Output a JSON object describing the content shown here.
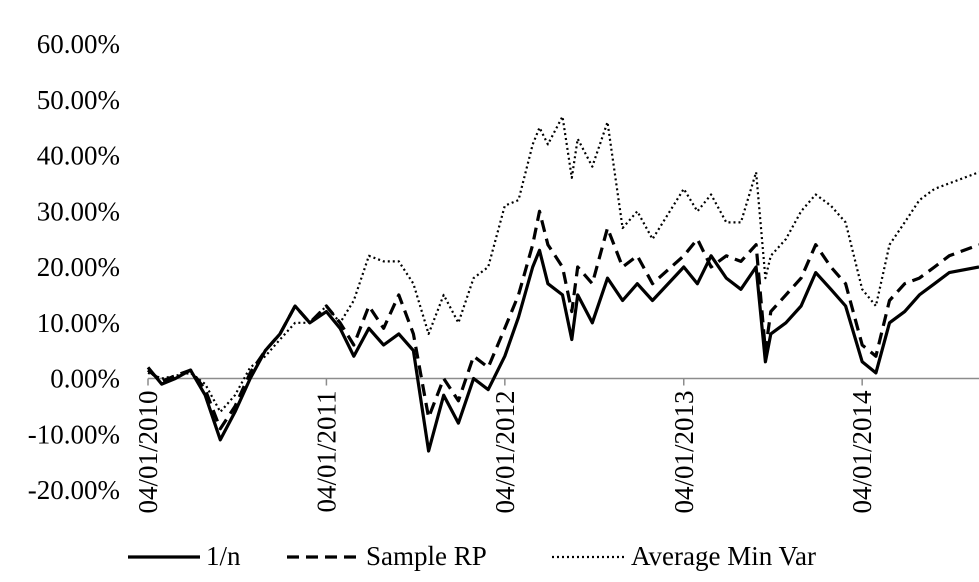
{
  "chart_data": {
    "type": "line",
    "title": "",
    "xlabel": "",
    "ylabel": "",
    "ylim": [
      -0.2,
      0.6
    ],
    "xlim": [
      "04/01/2010",
      "31/08/2014"
    ],
    "y_ticks": [
      {
        "value": 0.6,
        "label": "60.00%"
      },
      {
        "value": 0.5,
        "label": "50.00%"
      },
      {
        "value": 0.4,
        "label": "40.00%"
      },
      {
        "value": 0.3,
        "label": "30.00%"
      },
      {
        "value": 0.2,
        "label": "20.00%"
      },
      {
        "value": 0.1,
        "label": "10.00%"
      },
      {
        "value": 0.0,
        "label": "0.00%"
      },
      {
        "value": -0.1,
        "label": "-10.00%"
      },
      {
        "value": -0.2,
        "label": "-20.00%"
      }
    ],
    "x_ticks": [
      {
        "value": "04/01/2010",
        "label": "04/01/2010"
      },
      {
        "value": "04/01/2011",
        "label": "04/01/2011"
      },
      {
        "value": "04/01/2012",
        "label": "04/01/2012"
      },
      {
        "value": "04/01/2013",
        "label": "04/01/2013"
      },
      {
        "value": "04/01/2014",
        "label": "04/01/2014"
      }
    ],
    "grid": false,
    "legend_position": "bottom",
    "series": [
      {
        "name": "1/n",
        "style": "solid",
        "color": "#000000",
        "points": [
          [
            "04/01/2010",
            0.02
          ],
          [
            "01/02/2010",
            -0.01
          ],
          [
            "01/03/2010",
            0.0
          ],
          [
            "01/04/2010",
            0.015
          ],
          [
            "01/05/2010",
            -0.03
          ],
          [
            "01/06/2010",
            -0.11
          ],
          [
            "01/07/2010",
            -0.06
          ],
          [
            "01/08/2010",
            0.0
          ],
          [
            "01/09/2010",
            0.05
          ],
          [
            "01/10/2010",
            0.08
          ],
          [
            "01/11/2010",
            0.13
          ],
          [
            "01/12/2010",
            0.1
          ],
          [
            "04/01/2011",
            0.12
          ],
          [
            "01/02/2011",
            0.09
          ],
          [
            "01/03/2011",
            0.04
          ],
          [
            "01/04/2011",
            0.09
          ],
          [
            "01/05/2011",
            0.06
          ],
          [
            "01/06/2011",
            0.08
          ],
          [
            "01/07/2011",
            0.05
          ],
          [
            "01/08/2011",
            -0.13
          ],
          [
            "01/09/2011",
            -0.03
          ],
          [
            "01/10/2011",
            -0.08
          ],
          [
            "01/11/2011",
            0.0
          ],
          [
            "01/12/2011",
            -0.02
          ],
          [
            "04/01/2012",
            0.04
          ],
          [
            "01/02/2012",
            0.11
          ],
          [
            "01/03/2012",
            0.2
          ],
          [
            "15/03/2012",
            0.23
          ],
          [
            "01/04/2012",
            0.17
          ],
          [
            "01/05/2012",
            0.15
          ],
          [
            "20/05/2012",
            0.07
          ],
          [
            "01/06/2012",
            0.15
          ],
          [
            "01/07/2012",
            0.1
          ],
          [
            "01/08/2012",
            0.18
          ],
          [
            "01/09/2012",
            0.14
          ],
          [
            "01/10/2012",
            0.17
          ],
          [
            "01/11/2012",
            0.14
          ],
          [
            "04/01/2013",
            0.2
          ],
          [
            "01/02/2013",
            0.17
          ],
          [
            "01/03/2013",
            0.22
          ],
          [
            "01/04/2013",
            0.18
          ],
          [
            "01/05/2013",
            0.16
          ],
          [
            "01/06/2013",
            0.2
          ],
          [
            "20/06/2013",
            0.03
          ],
          [
            "01/07/2013",
            0.08
          ],
          [
            "01/08/2013",
            0.1
          ],
          [
            "01/09/2013",
            0.13
          ],
          [
            "01/10/2013",
            0.19
          ],
          [
            "01/11/2013",
            0.16
          ],
          [
            "01/12/2013",
            0.13
          ],
          [
            "04/01/2014",
            0.03
          ],
          [
            "01/02/2014",
            0.01
          ],
          [
            "01/03/2014",
            0.1
          ],
          [
            "01/04/2014",
            0.12
          ],
          [
            "01/05/2014",
            0.15
          ],
          [
            "01/06/2014",
            0.17
          ],
          [
            "01/07/2014",
            0.19
          ],
          [
            "31/08/2014",
            0.2
          ]
        ]
      },
      {
        "name": "Sample RP",
        "style": "dashed",
        "color": "#000000",
        "points": [
          [
            "04/01/2010",
            0.015
          ],
          [
            "01/02/2010",
            -0.005
          ],
          [
            "01/03/2010",
            0.005
          ],
          [
            "01/04/2010",
            0.015
          ],
          [
            "01/05/2010",
            -0.02
          ],
          [
            "01/06/2010",
            -0.09
          ],
          [
            "01/07/2010",
            -0.05
          ],
          [
            "01/08/2010",
            0.01
          ],
          [
            "01/09/2010",
            0.05
          ],
          [
            "01/10/2010",
            0.08
          ],
          [
            "01/11/2010",
            0.13
          ],
          [
            "01/12/2010",
            0.1
          ],
          [
            "04/01/2011",
            0.13
          ],
          [
            "01/02/2011",
            0.1
          ],
          [
            "01/03/2011",
            0.06
          ],
          [
            "01/04/2011",
            0.13
          ],
          [
            "01/05/2011",
            0.09
          ],
          [
            "01/06/2011",
            0.15
          ],
          [
            "01/07/2011",
            0.08
          ],
          [
            "01/08/2011",
            -0.07
          ],
          [
            "01/09/2011",
            0.0
          ],
          [
            "01/10/2011",
            -0.04
          ],
          [
            "01/11/2011",
            0.04
          ],
          [
            "01/12/2011",
            0.02
          ],
          [
            "04/01/2012",
            0.09
          ],
          [
            "01/02/2012",
            0.15
          ],
          [
            "01/03/2012",
            0.24
          ],
          [
            "15/03/2012",
            0.3
          ],
          [
            "01/04/2012",
            0.24
          ],
          [
            "01/05/2012",
            0.2
          ],
          [
            "20/05/2012",
            0.12
          ],
          [
            "01/06/2012",
            0.2
          ],
          [
            "01/07/2012",
            0.17
          ],
          [
            "01/08/2012",
            0.27
          ],
          [
            "01/09/2012",
            0.2
          ],
          [
            "01/10/2012",
            0.22
          ],
          [
            "01/11/2012",
            0.17
          ],
          [
            "04/01/2013",
            0.22
          ],
          [
            "01/02/2013",
            0.25
          ],
          [
            "01/03/2013",
            0.2
          ],
          [
            "01/04/2013",
            0.22
          ],
          [
            "01/05/2013",
            0.21
          ],
          [
            "01/06/2013",
            0.24
          ],
          [
            "20/06/2013",
            0.05
          ],
          [
            "01/07/2013",
            0.12
          ],
          [
            "01/08/2013",
            0.15
          ],
          [
            "01/09/2013",
            0.18
          ],
          [
            "01/10/2013",
            0.24
          ],
          [
            "01/11/2013",
            0.2
          ],
          [
            "01/12/2013",
            0.17
          ],
          [
            "04/01/2014",
            0.06
          ],
          [
            "01/02/2014",
            0.04
          ],
          [
            "01/03/2014",
            0.14
          ],
          [
            "01/04/2014",
            0.17
          ],
          [
            "01/05/2014",
            0.18
          ],
          [
            "01/06/2014",
            0.2
          ],
          [
            "01/07/2014",
            0.22
          ],
          [
            "31/08/2014",
            0.24
          ]
        ]
      },
      {
        "name": "Average Min Var",
        "style": "dotted",
        "color": "#000000",
        "points": [
          [
            "04/01/2010",
            0.01
          ],
          [
            "01/02/2010",
            0.0
          ],
          [
            "01/03/2010",
            0.005
          ],
          [
            "01/04/2010",
            0.01
          ],
          [
            "01/05/2010",
            -0.01
          ],
          [
            "01/06/2010",
            -0.06
          ],
          [
            "01/07/2010",
            -0.03
          ],
          [
            "01/08/2010",
            0.02
          ],
          [
            "01/09/2010",
            0.04
          ],
          [
            "01/10/2010",
            0.07
          ],
          [
            "01/11/2010",
            0.1
          ],
          [
            "01/12/2010",
            0.1
          ],
          [
            "04/01/2011",
            0.13
          ],
          [
            "01/02/2011",
            0.1
          ],
          [
            "01/03/2011",
            0.14
          ],
          [
            "01/04/2011",
            0.22
          ],
          [
            "01/05/2011",
            0.21
          ],
          [
            "01/06/2011",
            0.21
          ],
          [
            "01/07/2011",
            0.17
          ],
          [
            "01/08/2011",
            0.08
          ],
          [
            "01/09/2011",
            0.15
          ],
          [
            "01/10/2011",
            0.1
          ],
          [
            "01/11/2011",
            0.18
          ],
          [
            "01/12/2011",
            0.2
          ],
          [
            "04/01/2012",
            0.31
          ],
          [
            "01/02/2012",
            0.32
          ],
          [
            "01/03/2012",
            0.42
          ],
          [
            "15/03/2012",
            0.45
          ],
          [
            "01/04/2012",
            0.42
          ],
          [
            "01/05/2012",
            0.47
          ],
          [
            "20/05/2012",
            0.36
          ],
          [
            "01/06/2012",
            0.43
          ],
          [
            "01/07/2012",
            0.38
          ],
          [
            "01/08/2012",
            0.46
          ],
          [
            "01/09/2012",
            0.27
          ],
          [
            "01/10/2012",
            0.3
          ],
          [
            "01/11/2012",
            0.25
          ],
          [
            "04/01/2013",
            0.34
          ],
          [
            "01/02/2013",
            0.3
          ],
          [
            "01/03/2013",
            0.33
          ],
          [
            "01/04/2013",
            0.28
          ],
          [
            "01/05/2013",
            0.28
          ],
          [
            "01/06/2013",
            0.37
          ],
          [
            "20/06/2013",
            0.18
          ],
          [
            "01/07/2013",
            0.22
          ],
          [
            "01/08/2013",
            0.25
          ],
          [
            "01/09/2013",
            0.3
          ],
          [
            "01/10/2013",
            0.33
          ],
          [
            "01/11/2013",
            0.31
          ],
          [
            "01/12/2013",
            0.28
          ],
          [
            "04/01/2014",
            0.16
          ],
          [
            "01/02/2014",
            0.13
          ],
          [
            "01/03/2014",
            0.24
          ],
          [
            "01/04/2014",
            0.28
          ],
          [
            "01/05/2014",
            0.32
          ],
          [
            "01/06/2014",
            0.34
          ],
          [
            "01/07/2014",
            0.35
          ],
          [
            "31/08/2014",
            0.37
          ]
        ]
      }
    ]
  }
}
